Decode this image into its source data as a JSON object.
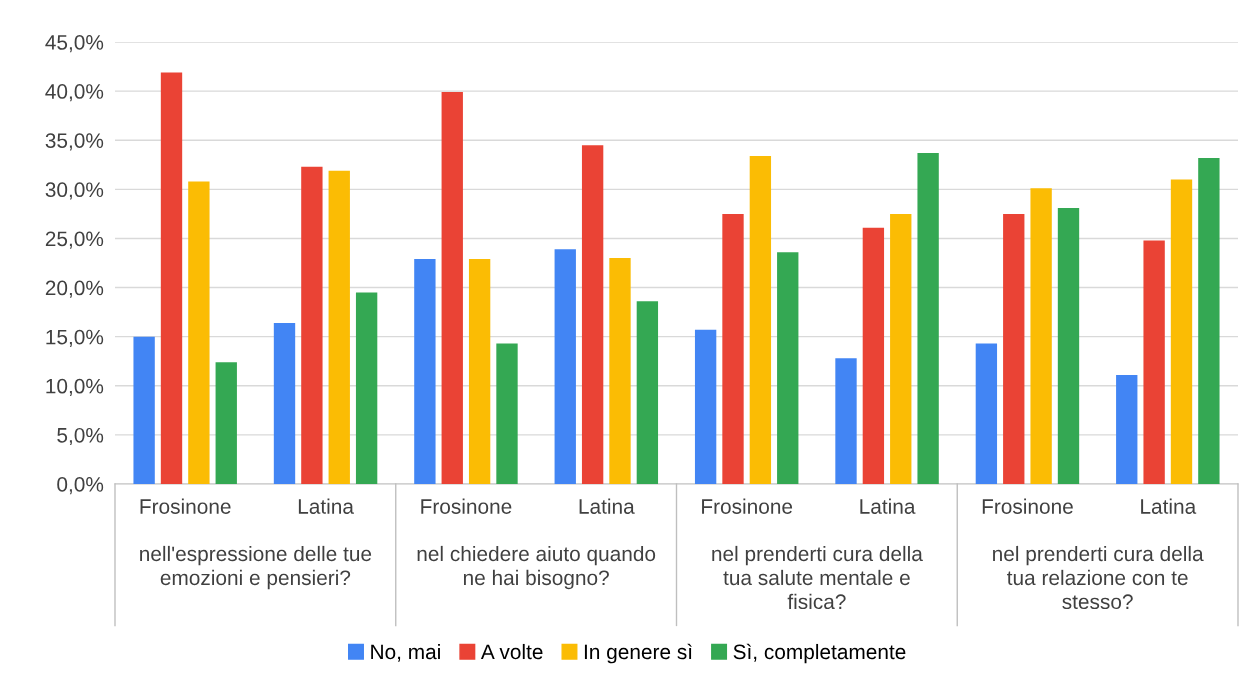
{
  "chart_data": {
    "type": "bar",
    "categories": [
      "Frosinone",
      "Latina",
      "Frosinone",
      "Latina",
      "Frosinone",
      "Latina",
      "Frosinone",
      "Latina"
    ],
    "annotations": [
      "nell'espressione delle tue\nemozioni e pensieri?",
      "nel chiedere aiuto quando\nne hai bisogno?",
      "nel prenderti cura della\ntua salute mentale e\nfisica?",
      "nel prenderti cura della\ntua relazione con te\nstesso?"
    ],
    "series": [
      {
        "name": "No, mai",
        "color": "#4285f4",
        "values": [
          15.0,
          16.4,
          22.9,
          23.9,
          15.7,
          12.8,
          14.3,
          11.1
        ]
      },
      {
        "name": "A volte",
        "color": "#ea4335",
        "values": [
          41.9,
          32.3,
          39.9,
          34.5,
          27.5,
          26.1,
          27.5,
          24.8
        ]
      },
      {
        "name": "In genere sì",
        "color": "#fbbc04",
        "values": [
          30.8,
          31.9,
          22.9,
          23.0,
          33.4,
          27.5,
          30.1,
          31.0
        ]
      },
      {
        "name": "Sì, completamente",
        "color": "#34a853",
        "values": [
          12.4,
          19.5,
          14.3,
          18.6,
          23.6,
          33.7,
          28.1,
          33.2
        ]
      }
    ],
    "ylim": [
      0,
      45
    ],
    "yticks": [
      {
        "value": 0,
        "label": "0,0%"
      },
      {
        "value": 5,
        "label": "5,0%"
      },
      {
        "value": 10,
        "label": "10,0%"
      },
      {
        "value": 15,
        "label": "15,0%"
      },
      {
        "value": 20,
        "label": "20,0%"
      },
      {
        "value": 25,
        "label": "25,0%"
      },
      {
        "value": 30,
        "label": "30,0%"
      },
      {
        "value": 35,
        "label": "35,0%"
      },
      {
        "value": 40,
        "label": "40,0%"
      },
      {
        "value": 45,
        "label": "45,0%"
      }
    ],
    "grid": "y",
    "legend": "bottom"
  }
}
